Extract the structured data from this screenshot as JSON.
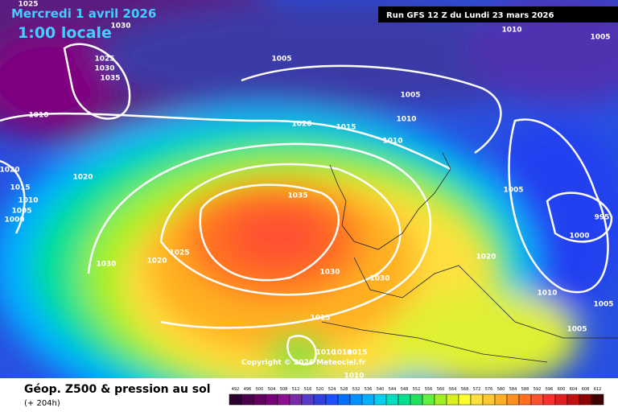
{
  "header": {
    "date": "Mercredi 1 avril 2026",
    "time": "1:00 locale",
    "run": "Run GFS 12 Z du Lundi 23 mars 2026"
  },
  "map": {
    "copyright": "Copyright © 2026 Meteociel.fr",
    "isobar_labels": [
      1025,
      1030,
      1025,
      1030,
      1035,
      1010,
      1020,
      1015,
      1010,
      1005,
      1000,
      1020,
      1030,
      1020,
      1025,
      1005,
      1005,
      1020,
      1015,
      1010,
      1010,
      1035,
      1030,
      1030,
      1015,
      1010,
      1010,
      1015,
      1010,
      1010,
      1005,
      1005,
      995,
      1000,
      1020,
      1010,
      1005,
      1005
    ]
  },
  "footer": {
    "title": "Géop. Z500 & pression au sol",
    "lead": "(+ 204h)"
  },
  "legend": {
    "levels": [
      492,
      496,
      500,
      504,
      508,
      512,
      516,
      520,
      524,
      528,
      532,
      536,
      540,
      544,
      548,
      552,
      556,
      560,
      564,
      568,
      572,
      576,
      580,
      584,
      588,
      592,
      596,
      600,
      604,
      608,
      612
    ],
    "colors": [
      "#2a0030",
      "#4a004a",
      "#62005f",
      "#7a0078",
      "#8a1090",
      "#7a2aa8",
      "#5a3ac8",
      "#3040e0",
      "#1f50ff",
      "#0070ff",
      "#0090ff",
      "#00b0ff",
      "#00d0f0",
      "#00e0c0",
      "#00e090",
      "#20e060",
      "#60f040",
      "#a0f020",
      "#d8f020",
      "#ffff30",
      "#ffe040",
      "#ffc830",
      "#ffb020",
      "#ff9020",
      "#ff7020",
      "#ff5030",
      "#ff3030",
      "#e02020",
      "#c01010",
      "#900000",
      "#400000"
    ]
  }
}
